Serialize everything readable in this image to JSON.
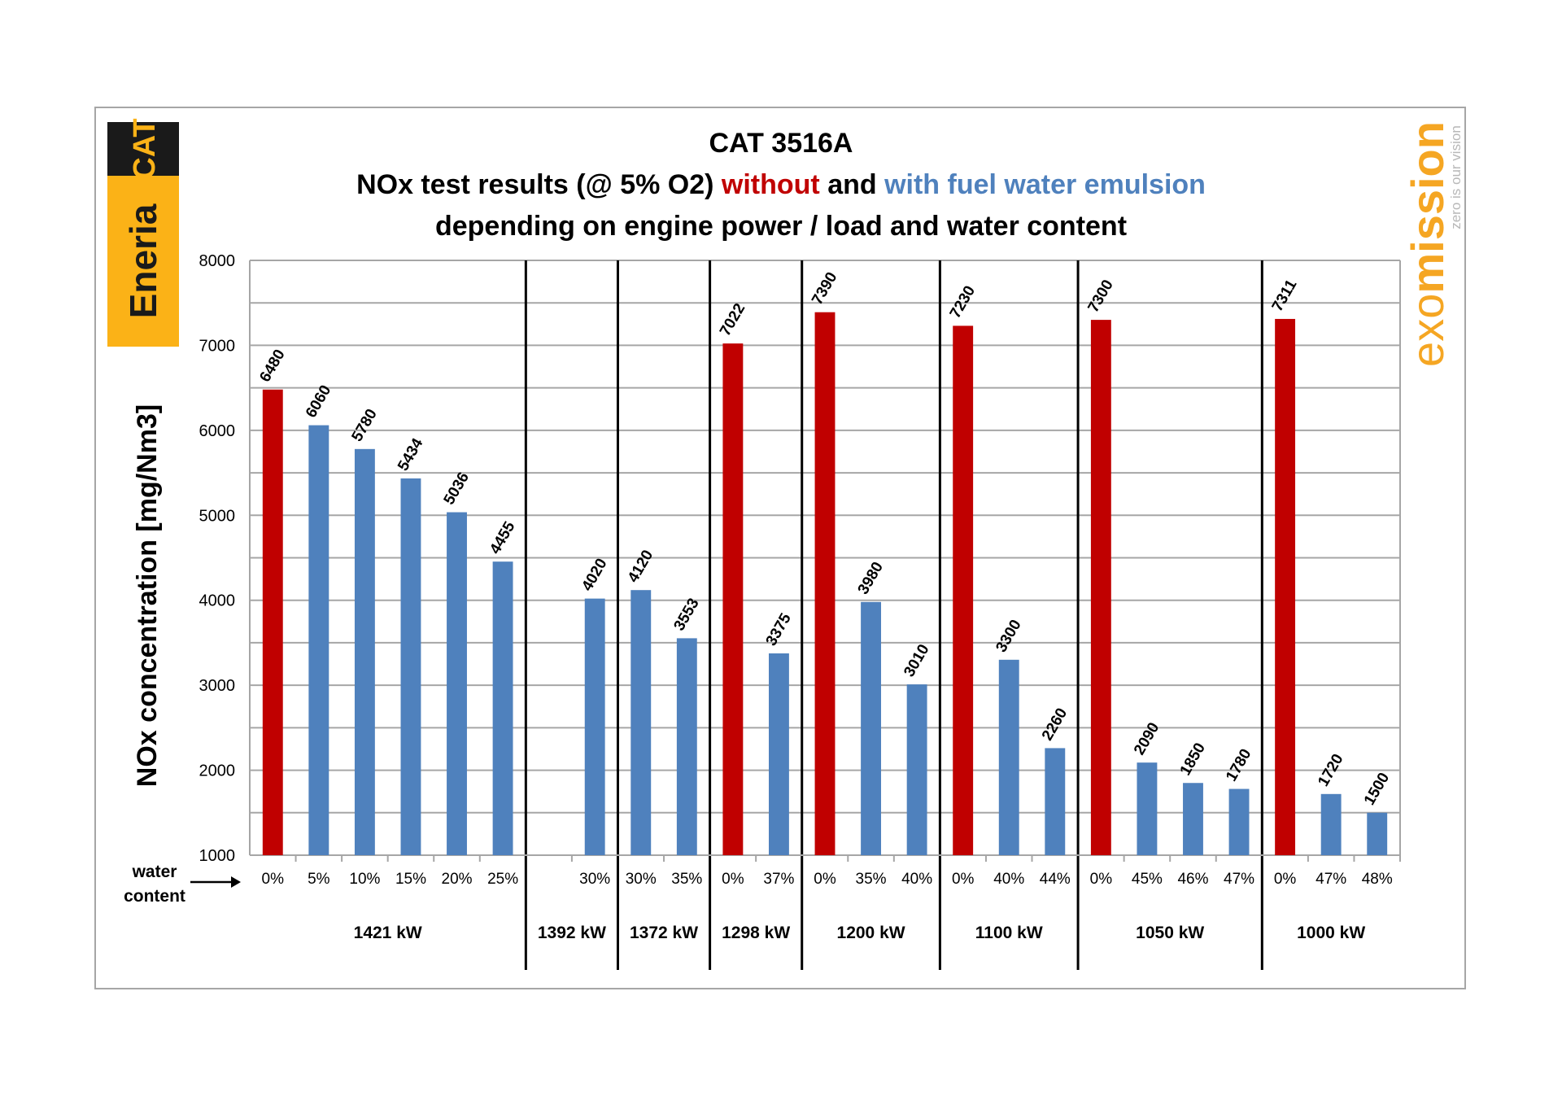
{
  "logos": {
    "left": {
      "brand": "CAT",
      "company": "Eneria",
      "bg_color": "#fbb217",
      "cat_bg": "#1a1a1a"
    },
    "right": {
      "brand_prefix": "exo",
      "brand_suffix": "mission",
      "tagline": "zero is our vision",
      "color": "#f5a623"
    }
  },
  "chart_data": {
    "type": "bar",
    "title_line1": "CAT 3516A",
    "title_line2": {
      "part1": "NOx test results (@ 5% O2) ",
      "part2": "without",
      "part3": " and ",
      "part4": "with fuel water emulsion"
    },
    "title_line3": "depending on engine power / load and water content",
    "ylabel": "NOx concentration [mg/Nm3]",
    "xlabel_line1": "water",
    "xlabel_line2": "content",
    "ylim": [
      1000,
      8000
    ],
    "yticks": [
      "8000",
      "7000",
      "6000",
      "5000",
      "4000",
      "3000",
      "2000",
      "1000"
    ],
    "colors": {
      "without": "#c00000",
      "with": "#4f81bd",
      "grid": "#a6a6a6",
      "separator": "#000000"
    },
    "groups": [
      {
        "label": "1421 kW",
        "bars": [
          {
            "category": "0%",
            "value": 6480,
            "label": "6480",
            "emulsion": false
          },
          {
            "category": "5%",
            "value": 6060,
            "label": "6060",
            "emulsion": true
          },
          {
            "category": "10%",
            "value": 5780,
            "label": "5780",
            "emulsion": true
          },
          {
            "category": "15%",
            "value": 5434,
            "label": "5434",
            "emulsion": true
          },
          {
            "category": "20%",
            "value": 5036,
            "label": "5036",
            "emulsion": true
          },
          {
            "category": "25%",
            "value": 4455,
            "label": "4455",
            "emulsion": true
          }
        ]
      },
      {
        "label": "1392 kW",
        "bars": [
          {
            "category": "",
            "value": null,
            "label": "",
            "emulsion": true
          },
          {
            "category": "30%",
            "value": 4020,
            "label": "4020",
            "emulsion": true
          }
        ]
      },
      {
        "label": "1372 kW",
        "bars": [
          {
            "category": "30%",
            "value": 4120,
            "label": "4120",
            "emulsion": true
          },
          {
            "category": "35%",
            "value": 3553,
            "label": "3553",
            "emulsion": true
          }
        ]
      },
      {
        "label": "1298 kW",
        "bars": [
          {
            "category": "0%",
            "value": 7022,
            "label": "7022",
            "emulsion": false
          },
          {
            "category": "37%",
            "value": 3375,
            "label": "3375",
            "emulsion": true
          }
        ]
      },
      {
        "label": "1200 kW",
        "bars": [
          {
            "category": "0%",
            "value": 7390,
            "label": "7390",
            "emulsion": false
          },
          {
            "category": "35%",
            "value": 3980,
            "label": "3980",
            "emulsion": true
          },
          {
            "category": "40%",
            "value": 3010,
            "label": "3010",
            "emulsion": true
          }
        ]
      },
      {
        "label": "1100 kW",
        "bars": [
          {
            "category": "0%",
            "value": 7230,
            "label": "7230",
            "emulsion": false
          },
          {
            "category": "40%",
            "value": 3300,
            "label": "3300",
            "emulsion": true
          },
          {
            "category": "44%",
            "value": 2260,
            "label": "2260",
            "emulsion": true
          }
        ]
      },
      {
        "label": "1050 kW",
        "bars": [
          {
            "category": "0%",
            "value": 7300,
            "label": "7300",
            "emulsion": false
          },
          {
            "category": "45%",
            "value": 2090,
            "label": "2090",
            "emulsion": true
          },
          {
            "category": "46%",
            "value": 1850,
            "label": "1850",
            "emulsion": true
          },
          {
            "category": "47%",
            "value": 1780,
            "label": "1780",
            "emulsion": true
          }
        ]
      },
      {
        "label": "1000 kW",
        "bars": [
          {
            "category": "0%",
            "value": 7311,
            "label": "7311",
            "emulsion": false
          },
          {
            "category": "47%",
            "value": 1720,
            "label": "1720",
            "emulsion": true
          },
          {
            "category": "48%",
            "value": 1500,
            "label": "1500",
            "emulsion": true
          }
        ]
      }
    ]
  }
}
